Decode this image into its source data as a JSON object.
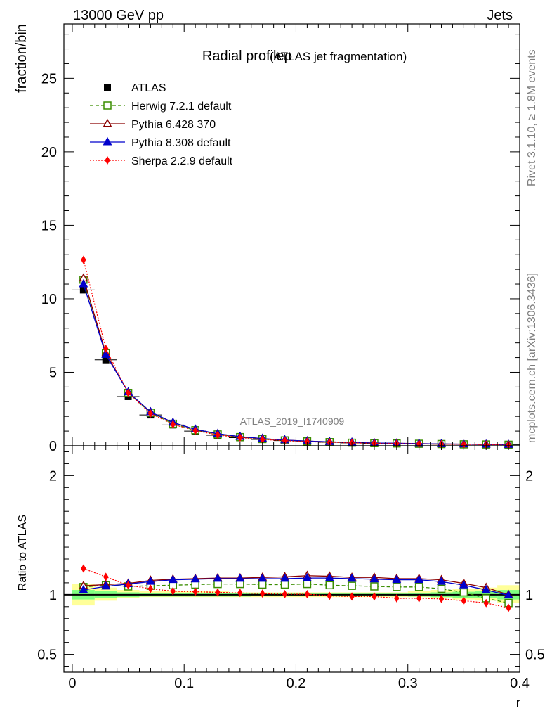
{
  "header": {
    "energy_label": "13000 GeV pp",
    "category_label": "Jets"
  },
  "side_text": {
    "rivet": "Rivet 3.1.10, ≥ 1.8M events",
    "mcplots": "mcplots.cern.ch [arXiv:1306.3436]"
  },
  "chart_data": [
    {
      "type": "line",
      "title": "Radial profileρ",
      "subtitle": "(ATLAS jet fragmentation)",
      "ylabel": "fraction/bin",
      "xlabel": "r",
      "watermark": "ATLAS_2019_I1740909",
      "xlim": [
        -0.0075,
        0.4
      ],
      "ylim": [
        0,
        28.7
      ],
      "y_ticks": [
        "0",
        "5",
        "10",
        "15",
        "20",
        "25"
      ],
      "x": [
        0.01,
        0.03,
        0.05,
        0.07,
        0.09,
        0.11,
        0.13,
        0.15,
        0.17,
        0.19,
        0.21,
        0.23,
        0.25,
        0.27,
        0.29,
        0.31,
        0.33,
        0.35,
        0.37,
        0.39
      ],
      "series": [
        {
          "name": "ATLAS",
          "color": "#000000",
          "marker": "square-filled",
          "line": "none",
          "values": [
            10.6,
            5.85,
            3.35,
            2.1,
            1.42,
            1.0,
            0.72,
            0.55,
            0.43,
            0.35,
            0.28,
            0.24,
            0.2,
            0.17,
            0.15,
            0.13,
            0.11,
            0.1,
            0.09,
            0.08
          ]
        },
        {
          "name": "Herwig 7.2.1 default",
          "color": "#3a8d00",
          "marker": "square-open",
          "line": "dashed",
          "values": [
            11.3,
            6.3,
            3.6,
            2.25,
            1.5,
            1.06,
            0.77,
            0.59,
            0.46,
            0.37,
            0.3,
            0.25,
            0.21,
            0.18,
            0.16,
            0.14,
            0.12,
            0.1,
            0.09,
            0.075
          ]
        },
        {
          "name": "Pythia 6.428 370",
          "color": "#8b0000",
          "marker": "triangle-open",
          "line": "solid",
          "values": [
            11.4,
            6.3,
            3.65,
            2.3,
            1.58,
            1.12,
            0.82,
            0.62,
            0.49,
            0.39,
            0.32,
            0.27,
            0.23,
            0.19,
            0.17,
            0.15,
            0.125,
            0.11,
            0.095,
            0.08
          ]
        },
        {
          "name": "Pythia 8.308 default",
          "color": "#0000cc",
          "marker": "triangle-filled",
          "line": "solid",
          "values": [
            11.0,
            6.2,
            3.65,
            2.3,
            1.58,
            1.12,
            0.82,
            0.62,
            0.49,
            0.39,
            0.32,
            0.27,
            0.23,
            0.19,
            0.17,
            0.15,
            0.125,
            0.11,
            0.093,
            0.079
          ]
        },
        {
          "name": "Sherpa 2.2.9 default",
          "color": "#ff0000",
          "marker": "diamond-filled",
          "line": "dotted",
          "values": [
            12.65,
            6.6,
            3.6,
            2.2,
            1.46,
            1.03,
            0.74,
            0.56,
            0.43,
            0.35,
            0.28,
            0.24,
            0.2,
            0.17,
            0.15,
            0.13,
            0.11,
            0.095,
            0.083,
            0.071
          ]
        }
      ]
    },
    {
      "type": "line",
      "ylabel": "Ratio to ATLAS",
      "xlabel": "r",
      "xlim": [
        -0.0075,
        0.4
      ],
      "ylim": [
        0.35,
        2.25
      ],
      "y_ticks": [
        "0.5",
        "1",
        "2"
      ],
      "y_ticks_right": [
        "0.5",
        "1",
        "2"
      ],
      "x_ticks": [
        "0",
        "0.1",
        "0.2",
        "0.3",
        "0.4"
      ],
      "x": [
        0.01,
        0.03,
        0.05,
        0.07,
        0.09,
        0.11,
        0.13,
        0.15,
        0.17,
        0.19,
        0.21,
        0.23,
        0.25,
        0.27,
        0.29,
        0.31,
        0.33,
        0.35,
        0.37,
        0.39
      ],
      "band_yellow": [
        [
          0.91,
          1.09
        ],
        [
          0.95,
          1.06
        ],
        [
          0.97,
          1.04
        ],
        [
          0.98,
          1.03
        ],
        [
          0.98,
          1.03
        ],
        [
          0.98,
          1.03
        ],
        [
          0.98,
          1.03
        ],
        [
          0.98,
          1.02
        ],
        [
          0.98,
          1.02
        ],
        [
          0.98,
          1.02
        ],
        [
          0.98,
          1.02
        ],
        [
          0.98,
          1.02
        ],
        [
          0.98,
          1.02
        ],
        [
          0.98,
          1.02
        ],
        [
          0.98,
          1.02
        ],
        [
          0.98,
          1.03
        ],
        [
          0.97,
          1.04
        ],
        [
          0.96,
          1.05
        ],
        [
          0.95,
          1.06
        ],
        [
          0.93,
          1.08
        ]
      ],
      "band_green": [
        [
          0.96,
          1.04
        ],
        [
          0.97,
          1.03
        ],
        [
          0.98,
          1.02
        ],
        [
          0.985,
          1.015
        ],
        [
          0.985,
          1.015
        ],
        [
          0.985,
          1.015
        ],
        [
          0.985,
          1.015
        ],
        [
          0.985,
          1.015
        ],
        [
          0.99,
          1.01
        ],
        [
          0.99,
          1.01
        ],
        [
          0.99,
          1.01
        ],
        [
          0.99,
          1.01
        ],
        [
          0.99,
          1.01
        ],
        [
          0.99,
          1.01
        ],
        [
          0.99,
          1.01
        ],
        [
          0.985,
          1.015
        ],
        [
          0.98,
          1.02
        ],
        [
          0.975,
          1.025
        ],
        [
          0.97,
          1.03
        ],
        [
          0.96,
          1.04
        ]
      ],
      "series": [
        {
          "name": "Herwig 7.2.1 default",
          "color": "#3a8d00",
          "marker": "square-open",
          "line": "dashed",
          "values": [
            1.065,
            1.08,
            1.07,
            1.075,
            1.08,
            1.085,
            1.09,
            1.09,
            1.085,
            1.085,
            1.09,
            1.08,
            1.075,
            1.07,
            1.065,
            1.065,
            1.05,
            1.02,
            0.97,
            0.93
          ]
        },
        {
          "name": "Pythia 6.428 370",
          "color": "#8b0000",
          "marker": "triangle-open",
          "line": "solid",
          "values": [
            1.075,
            1.085,
            1.095,
            1.12,
            1.13,
            1.135,
            1.14,
            1.14,
            1.145,
            1.15,
            1.16,
            1.155,
            1.145,
            1.145,
            1.135,
            1.135,
            1.125,
            1.095,
            1.06,
            1.0
          ]
        },
        {
          "name": "Pythia 8.308 default",
          "color": "#0000cc",
          "marker": "triangle-filled",
          "line": "solid",
          "values": [
            1.04,
            1.07,
            1.09,
            1.11,
            1.125,
            1.13,
            1.135,
            1.135,
            1.135,
            1.135,
            1.14,
            1.14,
            1.135,
            1.13,
            1.125,
            1.125,
            1.11,
            1.08,
            1.04,
            0.995
          ]
        },
        {
          "name": "Sherpa 2.2.9 default",
          "color": "#ff0000",
          "marker": "diamond-filled",
          "line": "dotted",
          "values": [
            1.22,
            1.15,
            1.08,
            1.05,
            1.03,
            1.025,
            1.02,
            1.015,
            1.01,
            1.005,
            1.005,
            0.99,
            0.985,
            0.985,
            0.97,
            0.97,
            0.965,
            0.95,
            0.93,
            0.89
          ]
        }
      ]
    }
  ]
}
